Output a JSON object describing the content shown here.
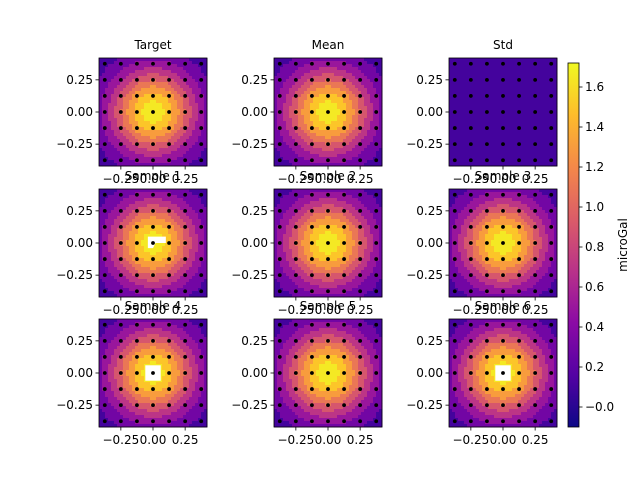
{
  "chart_data": {
    "type": "heatmap",
    "subplot_grid": [
      3,
      3
    ],
    "colormap": "plasma",
    "color_levels": [
      -0.1,
      0.0,
      0.2,
      0.4,
      0.6,
      0.8,
      1.0,
      1.2,
      1.4,
      1.6,
      1.7
    ],
    "xlim": [
      -0.42,
      0.42
    ],
    "ylim": [
      -0.42,
      0.42
    ],
    "x_ticks": [
      -0.25,
      0.0,
      0.25
    ],
    "x_tick_labels": [
      "−0.25",
      "0.00",
      "0.25"
    ],
    "y_ticks": [
      0.25,
      0.0,
      -0.25
    ],
    "y_tick_labels": [
      "0.25",
      "0.00",
      "−0.25"
    ],
    "station_grid": [
      -0.375,
      -0.25,
      -0.125,
      0.0,
      0.125,
      0.25,
      0.375
    ],
    "panels": [
      {
        "title": "Target",
        "field": "gaussian",
        "peak": 1.7,
        "hole": null
      },
      {
        "title": "Mean",
        "field": "gaussian",
        "peak": 1.7,
        "hole": null
      },
      {
        "title": "Std",
        "field": "uniform",
        "value": 0.0,
        "hole": null
      },
      {
        "title": "Sample 1",
        "field": "gaussian",
        "peak": 1.7,
        "hole": "notch"
      },
      {
        "title": "Sample 2",
        "field": "gaussian",
        "peak": 1.7,
        "hole": null
      },
      {
        "title": "Sample 3",
        "field": "gaussian",
        "peak": 1.7,
        "hole": null
      },
      {
        "title": "Sample 4",
        "field": "gaussian",
        "peak": 1.7,
        "hole": "square"
      },
      {
        "title": "Sample 5",
        "field": "gaussian",
        "peak": 1.7,
        "hole": null
      },
      {
        "title": "Sample 6",
        "field": "gaussian",
        "peak": 1.7,
        "hole": "square"
      }
    ],
    "colorbar": {
      "label": "microGal",
      "ticks": [
        -0.0,
        0.2,
        0.4,
        0.6,
        0.8,
        1.0,
        1.2,
        1.4,
        1.6
      ],
      "tick_labels": [
        "−0.0",
        "0.2",
        "0.4",
        "0.6",
        "0.8",
        "1.0",
        "1.2",
        "1.4",
        "1.6"
      ],
      "range": [
        -0.1,
        1.72
      ]
    }
  }
}
